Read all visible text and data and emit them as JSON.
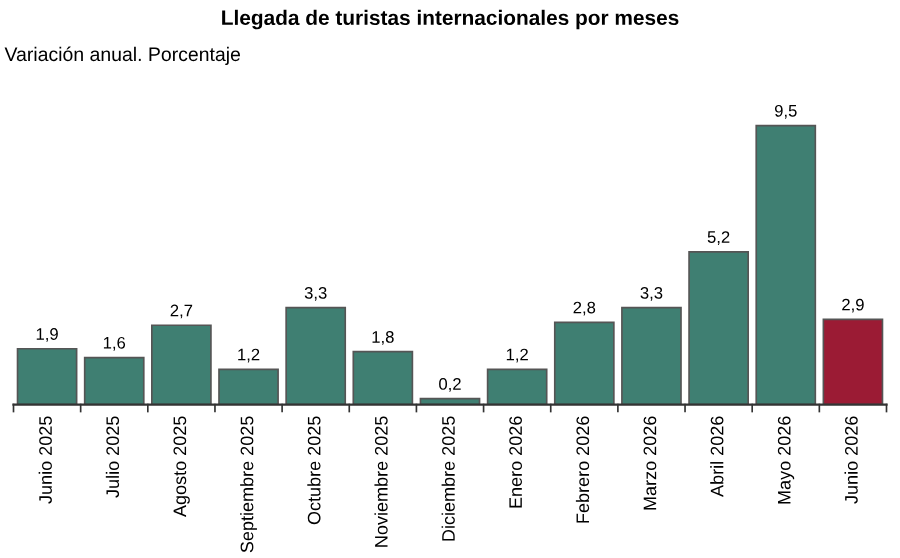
{
  "chart_data": {
    "type": "bar",
    "title": "Llegada de turistas internacionales por meses",
    "subtitle": "Variación anual. Porcentaje",
    "categories": [
      "Junio 2025",
      "Julio 2025",
      "Agosto 2025",
      "Septiembre 2025",
      "Octubre 2025",
      "Noviembre 2025",
      "Diciembre 2025",
      "Enero 2026",
      "Febrero 2026",
      "Marzo 2026",
      "Abril 2026",
      "Mayo 2026",
      "Junio 2026"
    ],
    "values": [
      1.9,
      1.6,
      2.7,
      1.2,
      3.3,
      1.8,
      0.2,
      1.2,
      2.8,
      3.3,
      5.2,
      9.5,
      2.9
    ],
    "colors": [
      "#3f7f72",
      "#3f7f72",
      "#3f7f72",
      "#3f7f72",
      "#3f7f72",
      "#3f7f72",
      "#3f7f72",
      "#3f7f72",
      "#3f7f72",
      "#3f7f72",
      "#3f7f72",
      "#3f7f72",
      "#9b1b34"
    ],
    "value_labels": [
      "1,9",
      "1,6",
      "2,7",
      "1,2",
      "3,3",
      "1,8",
      "0,2",
      "1,2",
      "2,8",
      "3,3",
      "5,2",
      "9,5",
      "2,9"
    ],
    "grid": false,
    "legend": false
  }
}
